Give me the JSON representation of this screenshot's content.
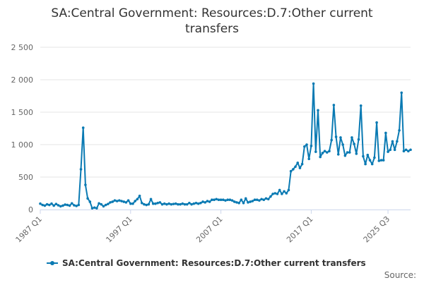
{
  "chart_data": {
    "type": "line",
    "title": "SA:Central Government: Resources:D.7:Other current transfers",
    "title_lines": [
      "SA:Central Government: Resources:D.7:Other current",
      "transfers"
    ],
    "xlabel": "",
    "ylabel": "",
    "x_tick_labels": [
      "1987 Q1",
      "1997 Q1",
      "2007 Q1",
      "2017 Q1",
      "2025 Q3"
    ],
    "y_tick_labels": [
      "0",
      "500",
      "1 000",
      "1 500",
      "2 000",
      "2 500"
    ],
    "y_ticks": [
      0,
      500,
      1000,
      1500,
      2000,
      2500
    ],
    "ylim": [
      0,
      2500
    ],
    "x_start_quarter": "1987 Q1",
    "grid": "horizontal",
    "legend_position": "bottom",
    "credit": "Source:",
    "colors": {
      "series": "#0a7ab3",
      "grid": "#e6e6e6",
      "axis": "#ccd6eb",
      "text": "#333333",
      "tick": "#666666"
    },
    "series": [
      {
        "name": "SA:Central Government: Resources:D.7:Other current transfers",
        "values": [
          90,
          70,
          60,
          80,
          70,
          90,
          60,
          85,
          65,
          50,
          60,
          75,
          70,
          60,
          95,
          65,
          55,
          70,
          620,
          1260,
          380,
          170,
          120,
          20,
          30,
          20,
          95,
          80,
          50,
          70,
          85,
          110,
          120,
          140,
          130,
          140,
          130,
          120,
          110,
          140,
          90,
          90,
          130,
          160,
          210,
          100,
          80,
          70,
          80,
          160,
          90,
          90,
          100,
          110,
          80,
          90,
          80,
          90,
          80,
          85,
          90,
          80,
          80,
          90,
          80,
          80,
          100,
          80,
          90,
          100,
          90,
          100,
          120,
          110,
          130,
          120,
          150,
          150,
          160,
          150,
          150,
          150,
          140,
          150,
          150,
          140,
          120,
          110,
          100,
          150,
          100,
          170,
          110,
          120,
          130,
          150,
          150,
          140,
          160,
          150,
          170,
          160,
          200,
          240,
          250,
          240,
          300,
          240,
          280,
          250,
          300,
          590,
          620,
          660,
          720,
          640,
          700,
          970,
          1000,
          780,
          980,
          1940,
          890,
          1530,
          810,
          870,
          900,
          880,
          900,
          1070,
          1610,
          1120,
          850,
          1110,
          1000,
          830,
          880,
          880,
          1110,
          1010,
          860,
          1080,
          1600,
          820,
          700,
          840,
          760,
          700,
          800,
          1340,
          750,
          760,
          760,
          1180,
          890,
          920,
          1050,
          920,
          1050,
          1220,
          1800,
          900,
          920,
          900,
          920
        ]
      }
    ]
  }
}
